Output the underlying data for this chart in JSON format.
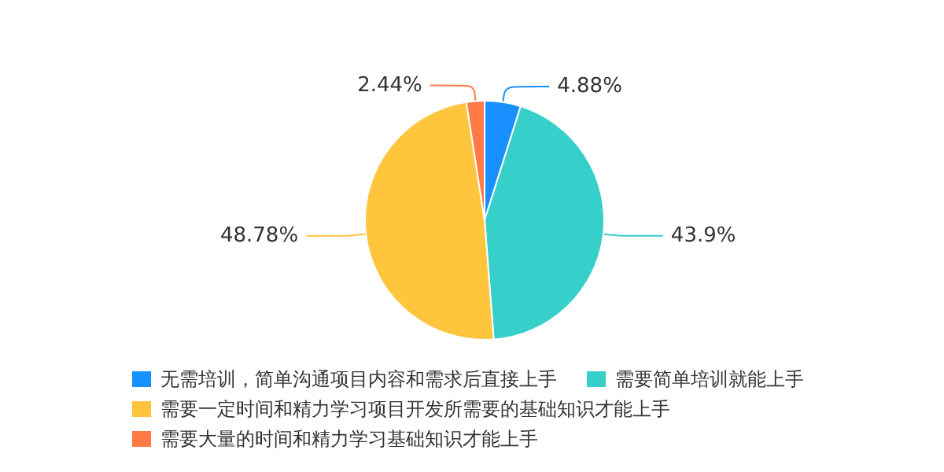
{
  "chart_data": {
    "type": "pie",
    "categories": [
      "无需培训，简单沟通项目内容和需求后直接上手",
      "需要简单培训就能上手",
      "需要一定时间和精力学习项目开发所需要的基础知识才能上手",
      "需要大量的时间和精力学习基础知识才能上手"
    ],
    "values": [
      4.88,
      43.9,
      48.78,
      2.44
    ],
    "value_labels": [
      "4.88%",
      "43.9%",
      "48.78%",
      "2.44%"
    ],
    "colors": [
      "#1890ff",
      "#36cfca",
      "#ffc53d",
      "#ff7a45"
    ],
    "legend": "bottom"
  }
}
